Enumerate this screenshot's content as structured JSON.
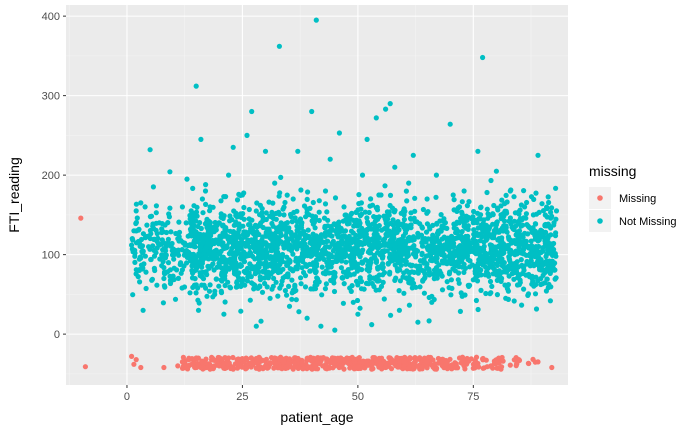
{
  "chart_data": {
    "type": "scatter",
    "title": "",
    "xlabel": "patient_age",
    "ylabel": "FTI_reading",
    "xlim": [
      -13.2,
      95.5
    ],
    "ylim": [
      -64,
      414
    ],
    "x_ticks": [
      0,
      25,
      50,
      75
    ],
    "x_tick_labels": [
      "0",
      "25",
      "50",
      "75"
    ],
    "y_ticks": [
      0,
      100,
      200,
      300,
      400
    ],
    "y_tick_labels": [
      "0",
      "100",
      "200",
      "300",
      "400"
    ],
    "grid": true,
    "background": "#ebebeb",
    "legend": {
      "title": "missing",
      "position": "right",
      "entries": [
        {
          "label": "Missing",
          "color": "#F8766D"
        },
        {
          "label": "Not Missing",
          "color": "#00BFC4"
        }
      ]
    },
    "series": [
      {
        "name": "Missing",
        "color": "#F8766D",
        "points": [
          [
            -10,
            146
          ],
          [
            -9,
            -41
          ],
          [
            1,
            -28
          ],
          [
            1.5,
            -38
          ],
          [
            2,
            -32
          ],
          [
            3,
            -42
          ],
          [
            8,
            -42
          ],
          [
            11,
            -40
          ],
          [
            12,
            -35
          ],
          [
            13,
            -43
          ],
          [
            14,
            -38
          ],
          [
            15,
            -30
          ],
          [
            16,
            -42
          ],
          [
            17,
            -36
          ],
          [
            18,
            -44
          ],
          [
            19,
            -33
          ],
          [
            20,
            -40
          ],
          [
            21,
            -37
          ],
          [
            22,
            -30
          ],
          [
            23,
            -44
          ],
          [
            24,
            -35
          ],
          [
            25,
            -41
          ],
          [
            26,
            -32
          ],
          [
            27,
            -38
          ],
          [
            28,
            -43
          ],
          [
            29,
            -34
          ],
          [
            30,
            -40
          ],
          [
            31,
            -36
          ],
          [
            32,
            -30
          ],
          [
            33,
            -42
          ],
          [
            34,
            -35
          ],
          [
            35,
            -39
          ],
          [
            36,
            -44
          ],
          [
            37,
            -32
          ],
          [
            38,
            -37
          ],
          [
            39,
            -41
          ],
          [
            40,
            -34
          ],
          [
            41,
            -38
          ],
          [
            42,
            -30
          ],
          [
            43,
            -43
          ],
          [
            44,
            -36
          ],
          [
            45,
            -40
          ],
          [
            46,
            -33
          ],
          [
            47,
            -44
          ],
          [
            48,
            -37
          ],
          [
            49,
            -31
          ],
          [
            50,
            -41
          ],
          [
            51,
            -35
          ],
          [
            52,
            -39
          ],
          [
            53,
            -44
          ],
          [
            54,
            -33
          ],
          [
            55,
            -38
          ],
          [
            56,
            -42
          ],
          [
            57,
            -30
          ],
          [
            58,
            -36
          ],
          [
            59,
            -40
          ],
          [
            60,
            -34
          ],
          [
            61,
            -43
          ],
          [
            62,
            -37
          ],
          [
            63,
            -31
          ],
          [
            64,
            -41
          ],
          [
            65,
            -35
          ],
          [
            66,
            -39
          ],
          [
            67,
            -44
          ],
          [
            68,
            -32
          ],
          [
            69,
            -38
          ],
          [
            70,
            -42
          ],
          [
            71,
            -36
          ],
          [
            72,
            -30
          ],
          [
            73,
            -40
          ],
          [
            74,
            -34
          ],
          [
            75,
            -43
          ],
          [
            76,
            -37
          ],
          [
            77,
            -31
          ],
          [
            78,
            -41
          ],
          [
            80,
            -35
          ],
          [
            81,
            -44
          ],
          [
            83,
            -39
          ],
          [
            85,
            -33
          ],
          [
            87,
            -37
          ],
          [
            89,
            -35
          ],
          [
            92,
            -42
          ]
        ]
      },
      {
        "name": "Not Missing",
        "color": "#00BFC4",
        "points": [
          [
            1,
            112
          ],
          [
            1.5,
            130
          ],
          [
            2,
            155
          ],
          [
            3,
            165
          ],
          [
            3.5,
            30
          ],
          [
            5,
            232
          ],
          [
            6,
            80
          ],
          [
            7,
            140
          ],
          [
            8,
            70
          ],
          [
            9,
            90
          ],
          [
            10,
            105
          ],
          [
            11,
            120
          ],
          [
            12,
            160
          ],
          [
            13,
            195
          ],
          [
            14,
            100
          ],
          [
            15,
            312
          ],
          [
            15.5,
            30
          ],
          [
            16,
            245
          ],
          [
            17,
            180
          ],
          [
            18,
            160
          ],
          [
            19,
            50
          ],
          [
            20,
            140
          ],
          [
            21,
            25
          ],
          [
            22,
            200
          ],
          [
            23,
            235
          ],
          [
            24,
            60
          ],
          [
            25,
            175
          ],
          [
            26,
            250
          ],
          [
            27,
            280
          ],
          [
            28,
            10
          ],
          [
            29,
            140
          ],
          [
            30,
            230
          ],
          [
            31,
            45
          ],
          [
            32,
            190
          ],
          [
            33,
            362
          ],
          [
            34,
            150
          ],
          [
            35,
            60
          ],
          [
            36,
            170
          ],
          [
            37,
            230
          ],
          [
            38,
            95
          ],
          [
            39,
            20
          ],
          [
            40,
            280
          ],
          [
            41,
            395
          ],
          [
            42,
            10
          ],
          [
            43,
            180
          ],
          [
            44,
            220
          ],
          [
            45,
            5
          ],
          [
            46,
            253
          ],
          [
            47,
            160
          ],
          [
            48,
            120
          ],
          [
            49,
            40
          ],
          [
            50,
            25
          ],
          [
            51,
            200
          ],
          [
            52,
            245
          ],
          [
            53,
            12
          ],
          [
            54,
            272
          ],
          [
            55,
            175
          ],
          [
            56,
            283
          ],
          [
            57,
            290
          ],
          [
            58,
            210
          ],
          [
            59,
            30
          ],
          [
            60,
            150
          ],
          [
            61,
            190
          ],
          [
            62,
            225
          ],
          [
            63,
            15
          ],
          [
            64,
            80
          ],
          [
            65,
            170
          ],
          [
            66,
            40
          ],
          [
            67,
            200
          ],
          [
            68,
            130
          ],
          [
            69,
            110
          ],
          [
            70,
            264
          ],
          [
            71,
            90
          ],
          [
            72,
            160
          ],
          [
            73,
            180
          ],
          [
            74,
            60
          ],
          [
            75,
            140
          ],
          [
            76,
            230
          ],
          [
            77,
            348
          ],
          [
            78,
            120
          ],
          [
            79,
            60
          ],
          [
            80,
            205
          ],
          [
            81,
            150
          ],
          [
            82,
            45
          ],
          [
            83,
            180
          ],
          [
            84,
            100
          ],
          [
            85,
            130
          ],
          [
            86,
            110
          ],
          [
            87,
            75
          ],
          [
            88,
            150
          ],
          [
            89,
            225
          ],
          [
            90,
            105
          ],
          [
            91,
            120
          ],
          [
            92,
            110
          ],
          [
            93,
            155
          ]
        ]
      }
    ]
  }
}
